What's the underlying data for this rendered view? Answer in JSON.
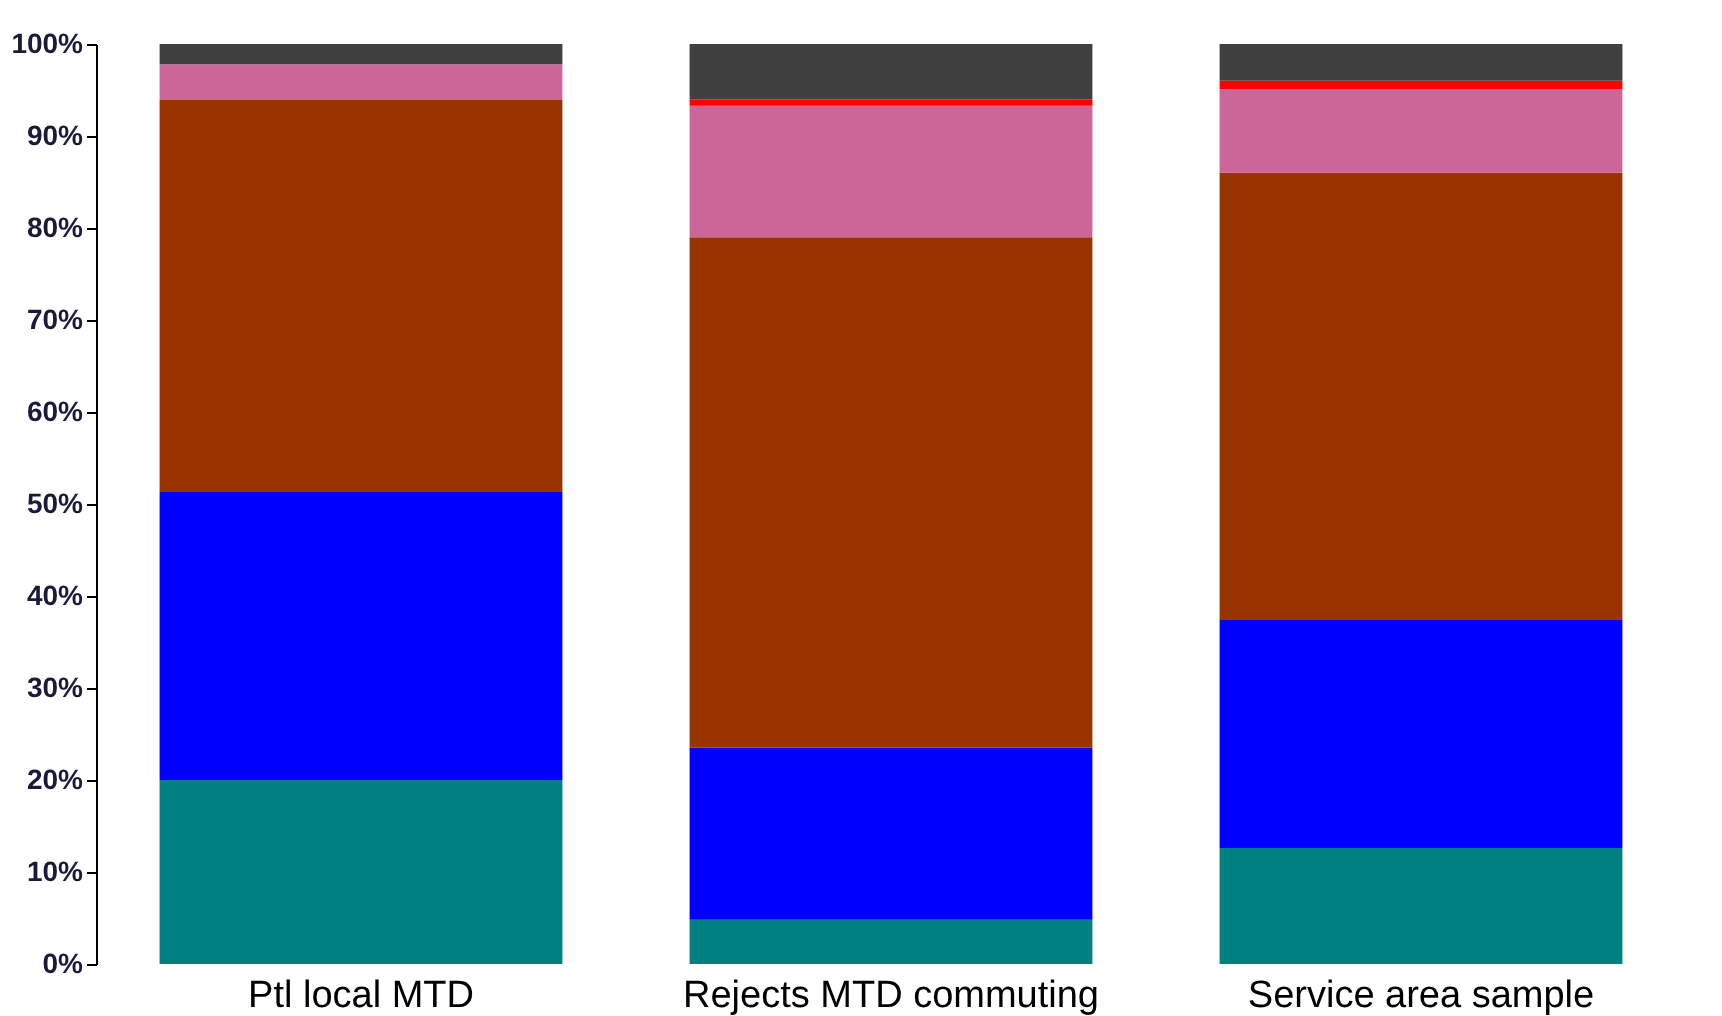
{
  "chart_data": {
    "type": "bar",
    "stacked": true,
    "categories": [
      "Ptl local MTD",
      "Rejects MTD commuting",
      "Service area sample"
    ],
    "series": [
      {
        "color": "#008080",
        "values": [
          20.0,
          4.8,
          12.6
        ]
      },
      {
        "color": "#0000ff",
        "values": [
          31.3,
          18.7,
          24.8
        ]
      },
      {
        "color": "#993300",
        "values": [
          42.6,
          55.5,
          48.6
        ]
      },
      {
        "color": "#cc6699",
        "values": [
          3.9,
          14.3,
          9.1
        ]
      },
      {
        "color": "#ff0000",
        "values": [
          0,
          0.7,
          0.9
        ]
      },
      {
        "color": "#404040",
        "values": [
          2.2,
          6.0,
          4.0
        ]
      }
    ],
    "ylim": [
      0,
      100
    ],
    "yticks": [
      {
        "value": 0,
        "label": "0%"
      },
      {
        "value": 10,
        "label": "10%"
      },
      {
        "value": 20,
        "label": "20%"
      },
      {
        "value": 30,
        "label": "30%"
      },
      {
        "value": 40,
        "label": "40%"
      },
      {
        "value": 50,
        "label": "50%"
      },
      {
        "value": 60,
        "label": "60%"
      },
      {
        "value": 70,
        "label": "70%"
      },
      {
        "value": 80,
        "label": "80%"
      },
      {
        "value": 90,
        "label": "90%"
      },
      {
        "value": 100,
        "label": "100%"
      }
    ],
    "grid": false,
    "legend": false
  }
}
